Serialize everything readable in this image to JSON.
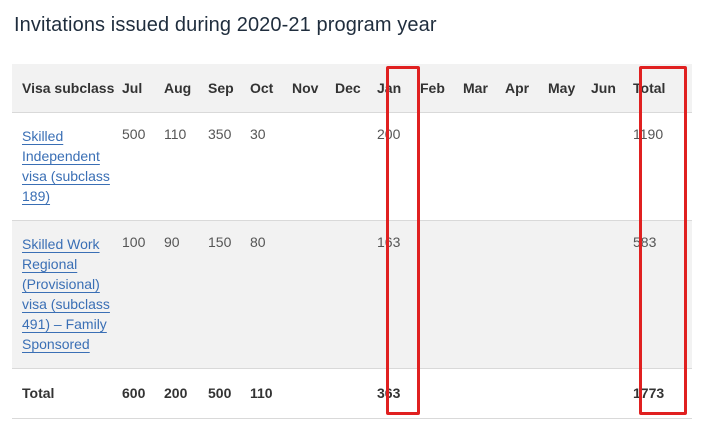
{
  "title": "Invitations issued during 2020-21 program year",
  "columns": [
    "Visa subclass",
    "Jul",
    "Aug",
    "Sep",
    "Oct",
    "Nov",
    "Dec",
    "Jan",
    "Feb",
    "Mar",
    "Apr",
    "May",
    "Jun",
    "Total"
  ],
  "rows": [
    {
      "subclass": "Skilled Independent visa (subclass 189)",
      "values": [
        "500",
        "110",
        "350",
        "30",
        "",
        "",
        "200",
        "",
        "",
        "",
        "",
        "",
        "1190"
      ]
    },
    {
      "subclass": "Skilled Work Regional (Provisional) visa (subclass 491) – Family Sponsored",
      "values": [
        "100",
        "90",
        "150",
        "80",
        "",
        "",
        "163",
        "",
        "",
        "",
        "",
        "",
        "583"
      ]
    }
  ],
  "total_row": {
    "label": "Total",
    "values": [
      "600",
      "200",
      "500",
      "110",
      "",
      "",
      "363",
      "",
      "",
      "",
      "",
      "",
      "1773"
    ]
  },
  "colors": {
    "highlight": "#e02020",
    "link": "#3a6fb5",
    "header_bg": "#f2f2f2"
  }
}
